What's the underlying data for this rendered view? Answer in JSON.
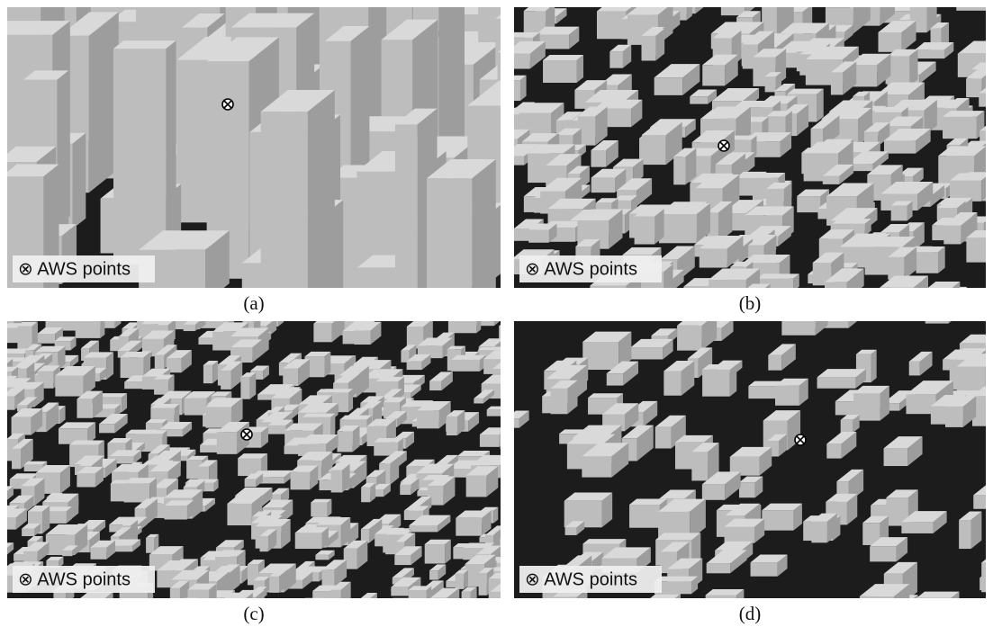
{
  "panels": [
    {
      "label": "⊗ AWS points",
      "caption": "(a)"
    },
    {
      "label": "⊗ AWS points",
      "caption": "(b)"
    },
    {
      "label": "⊗ AWS points",
      "caption": "(c)"
    },
    {
      "label": "⊗ AWS points",
      "caption": "(d)"
    }
  ]
}
